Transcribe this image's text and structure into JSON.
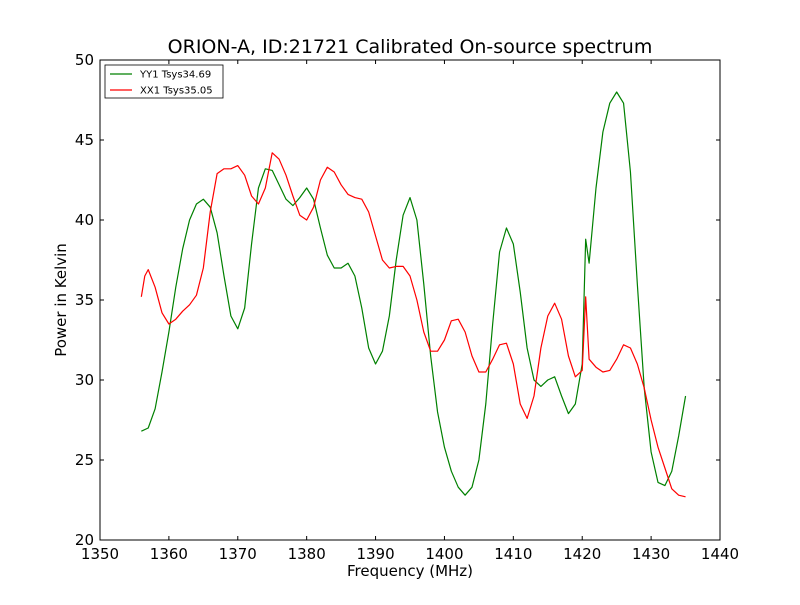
{
  "chart_data": {
    "type": "line",
    "title": "ORION-A, ID:21721 Calibrated On-source spectrum",
    "xlabel": "Frequency (MHz)",
    "ylabel": "Power in Kelvin",
    "xlim": [
      1350,
      1440
    ],
    "ylim": [
      20,
      50
    ],
    "xticks": [
      1350,
      1360,
      1370,
      1380,
      1390,
      1400,
      1410,
      1420,
      1430,
      1440
    ],
    "yticks": [
      20,
      25,
      30,
      35,
      40,
      45,
      50
    ],
    "grid": false,
    "legend_position": "top-left",
    "series": [
      {
        "name": "YY1 Tsys34.69",
        "color": "#008000",
        "points": [
          [
            1356,
            26.8
          ],
          [
            1357,
            27.0
          ],
          [
            1358,
            28.2
          ],
          [
            1359,
            30.5
          ],
          [
            1360,
            33.0
          ],
          [
            1361,
            35.8
          ],
          [
            1362,
            38.2
          ],
          [
            1363,
            40.0
          ],
          [
            1364,
            41.0
          ],
          [
            1365,
            41.3
          ],
          [
            1366,
            40.8
          ],
          [
            1367,
            39.2
          ],
          [
            1368,
            36.5
          ],
          [
            1369,
            34.0
          ],
          [
            1370,
            33.2
          ],
          [
            1371,
            34.5
          ],
          [
            1372,
            38.5
          ],
          [
            1373,
            42.0
          ],
          [
            1374,
            43.2
          ],
          [
            1375,
            43.1
          ],
          [
            1376,
            42.2
          ],
          [
            1377,
            41.3
          ],
          [
            1378,
            40.9
          ],
          [
            1379,
            41.4
          ],
          [
            1380,
            42.0
          ],
          [
            1381,
            41.3
          ],
          [
            1382,
            39.5
          ],
          [
            1383,
            37.8
          ],
          [
            1384,
            37.0
          ],
          [
            1385,
            37.0
          ],
          [
            1386,
            37.3
          ],
          [
            1387,
            36.5
          ],
          [
            1388,
            34.5
          ],
          [
            1389,
            32.0
          ],
          [
            1390,
            31.0
          ],
          [
            1391,
            31.8
          ],
          [
            1392,
            34.0
          ],
          [
            1393,
            37.5
          ],
          [
            1394,
            40.3
          ],
          [
            1395,
            41.4
          ],
          [
            1396,
            40.0
          ],
          [
            1397,
            36.0
          ],
          [
            1398,
            31.5
          ],
          [
            1399,
            28.0
          ],
          [
            1400,
            25.8
          ],
          [
            1401,
            24.3
          ],
          [
            1402,
            23.3
          ],
          [
            1403,
            22.8
          ],
          [
            1404,
            23.3
          ],
          [
            1405,
            25.0
          ],
          [
            1406,
            28.5
          ],
          [
            1407,
            33.5
          ],
          [
            1408,
            38.0
          ],
          [
            1409,
            39.5
          ],
          [
            1410,
            38.5
          ],
          [
            1411,
            35.5
          ],
          [
            1412,
            32.0
          ],
          [
            1413,
            30.0
          ],
          [
            1414,
            29.6
          ],
          [
            1415,
            30.0
          ],
          [
            1416,
            30.2
          ],
          [
            1417,
            29.0
          ],
          [
            1418,
            27.9
          ],
          [
            1419,
            28.5
          ],
          [
            1420,
            31.0
          ],
          [
            1420.5,
            38.8
          ],
          [
            1421,
            37.3
          ],
          [
            1422,
            42.0
          ],
          [
            1423,
            45.5
          ],
          [
            1424,
            47.3
          ],
          [
            1425,
            48.0
          ],
          [
            1426,
            47.3
          ],
          [
            1427,
            43.0
          ],
          [
            1428,
            36.0
          ],
          [
            1429,
            29.5
          ],
          [
            1430,
            25.5
          ],
          [
            1431,
            23.6
          ],
          [
            1432,
            23.4
          ],
          [
            1433,
            24.3
          ],
          [
            1434,
            26.5
          ],
          [
            1435,
            29.0
          ]
        ]
      },
      {
        "name": "XX1 Tsys35.05",
        "color": "#ff0000",
        "points": [
          [
            1356,
            35.2
          ],
          [
            1356.5,
            36.5
          ],
          [
            1357,
            36.9
          ],
          [
            1358,
            35.8
          ],
          [
            1359,
            34.2
          ],
          [
            1360,
            33.5
          ],
          [
            1361,
            33.8
          ],
          [
            1362,
            34.3
          ],
          [
            1363,
            34.7
          ],
          [
            1364,
            35.3
          ],
          [
            1365,
            37.0
          ],
          [
            1366,
            40.5
          ],
          [
            1367,
            42.9
          ],
          [
            1368,
            43.2
          ],
          [
            1369,
            43.2
          ],
          [
            1370,
            43.4
          ],
          [
            1371,
            42.8
          ],
          [
            1372,
            41.5
          ],
          [
            1373,
            41.0
          ],
          [
            1374,
            42.0
          ],
          [
            1375,
            44.2
          ],
          [
            1376,
            43.8
          ],
          [
            1377,
            42.8
          ],
          [
            1378,
            41.5
          ],
          [
            1379,
            40.3
          ],
          [
            1380,
            40.0
          ],
          [
            1381,
            40.8
          ],
          [
            1382,
            42.5
          ],
          [
            1383,
            43.3
          ],
          [
            1384,
            43.0
          ],
          [
            1385,
            42.2
          ],
          [
            1386,
            41.6
          ],
          [
            1387,
            41.4
          ],
          [
            1388,
            41.3
          ],
          [
            1389,
            40.5
          ],
          [
            1390,
            39.0
          ],
          [
            1391,
            37.5
          ],
          [
            1392,
            37.0
          ],
          [
            1393,
            37.1
          ],
          [
            1394,
            37.1
          ],
          [
            1395,
            36.5
          ],
          [
            1396,
            35.0
          ],
          [
            1397,
            33.0
          ],
          [
            1398,
            31.8
          ],
          [
            1399,
            31.8
          ],
          [
            1400,
            32.5
          ],
          [
            1401,
            33.7
          ],
          [
            1402,
            33.8
          ],
          [
            1403,
            33.0
          ],
          [
            1404,
            31.5
          ],
          [
            1405,
            30.5
          ],
          [
            1406,
            30.5
          ],
          [
            1407,
            31.3
          ],
          [
            1408,
            32.2
          ],
          [
            1409,
            32.3
          ],
          [
            1410,
            31.0
          ],
          [
            1411,
            28.5
          ],
          [
            1412,
            27.6
          ],
          [
            1413,
            29.0
          ],
          [
            1414,
            32.0
          ],
          [
            1415,
            34.0
          ],
          [
            1416,
            34.8
          ],
          [
            1417,
            33.8
          ],
          [
            1418,
            31.5
          ],
          [
            1419,
            30.2
          ],
          [
            1420,
            30.6
          ],
          [
            1420.5,
            35.2
          ],
          [
            1421,
            31.3
          ],
          [
            1422,
            30.8
          ],
          [
            1423,
            30.5
          ],
          [
            1424,
            30.6
          ],
          [
            1425,
            31.3
          ],
          [
            1426,
            32.2
          ],
          [
            1427,
            32.0
          ],
          [
            1428,
            31.0
          ],
          [
            1429,
            29.5
          ],
          [
            1430,
            27.5
          ],
          [
            1431,
            25.8
          ],
          [
            1432,
            24.5
          ],
          [
            1433,
            23.2
          ],
          [
            1434,
            22.8
          ],
          [
            1435,
            22.7
          ]
        ]
      }
    ]
  }
}
